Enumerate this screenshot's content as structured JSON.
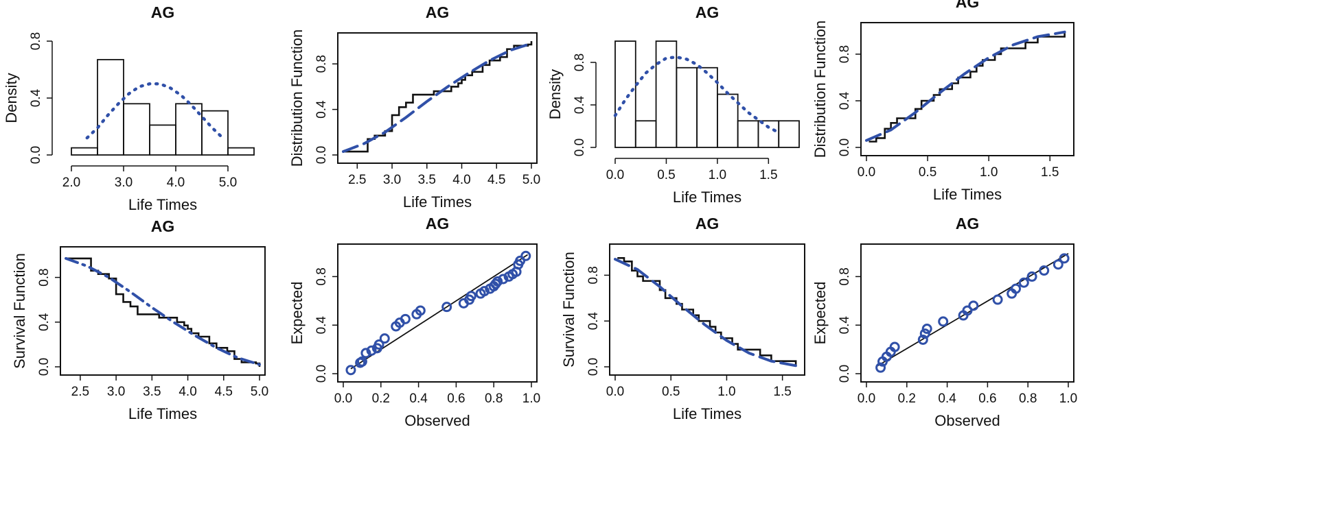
{
  "chart_data": [
    {
      "id": "p1",
      "type": "histogram",
      "title": "AG",
      "xlabel": "Life Times",
      "ylabel": "Density",
      "xlim": [
        2.0,
        5.5
      ],
      "ylim": [
        0,
        0.8
      ],
      "xticks": [
        2.0,
        3.0,
        4.0,
        5.0
      ],
      "yticks": [
        0.0,
        0.4,
        0.8
      ],
      "bins": [
        [
          2.0,
          2.5,
          0.05
        ],
        [
          2.5,
          3.0,
          0.67
        ],
        [
          3.0,
          3.5,
          0.36
        ],
        [
          3.5,
          4.0,
          0.21
        ],
        [
          4.0,
          4.5,
          0.36
        ],
        [
          4.5,
          5.0,
          0.31
        ],
        [
          5.0,
          5.5,
          0.05
        ]
      ],
      "fit": {
        "style": "dotted",
        "color": "#3050a8",
        "x": [
          2.3,
          2.5,
          2.7,
          2.9,
          3.1,
          3.3,
          3.5,
          3.7,
          3.9,
          4.1,
          4.3,
          4.5,
          4.7,
          4.9
        ],
        "y": [
          0.12,
          0.19,
          0.28,
          0.36,
          0.43,
          0.48,
          0.5,
          0.5,
          0.47,
          0.42,
          0.35,
          0.27,
          0.19,
          0.12
        ]
      }
    },
    {
      "id": "p2",
      "type": "step",
      "title": "AG",
      "xlabel": "Life Times",
      "ylabel": "Distribution Function",
      "xlim": [
        2.3,
        5.0
      ],
      "ylim": [
        0,
        1.0
      ],
      "xticks": [
        2.5,
        3.0,
        3.5,
        4.0,
        4.5,
        5.0
      ],
      "yticks": [
        0.0,
        0.4,
        0.8
      ],
      "step": [
        [
          2.3,
          0.03
        ],
        [
          2.65,
          0.03
        ],
        [
          2.65,
          0.14
        ],
        [
          2.75,
          0.17
        ],
        [
          2.9,
          0.21
        ],
        [
          3.0,
          0.35
        ],
        [
          3.1,
          0.42
        ],
        [
          3.2,
          0.46
        ],
        [
          3.3,
          0.53
        ],
        [
          3.55,
          0.53
        ],
        [
          3.6,
          0.56
        ],
        [
          3.8,
          0.56
        ],
        [
          3.85,
          0.6
        ],
        [
          3.95,
          0.63
        ],
        [
          4.0,
          0.66
        ],
        [
          4.05,
          0.7
        ],
        [
          4.15,
          0.73
        ],
        [
          4.3,
          0.79
        ],
        [
          4.4,
          0.83
        ],
        [
          4.55,
          0.86
        ],
        [
          4.65,
          0.93
        ],
        [
          4.75,
          0.96
        ],
        [
          4.95,
          0.97
        ],
        [
          5.0,
          1.0
        ]
      ],
      "fit": {
        "style": "dashed",
        "color": "#3050a8",
        "x": [
          2.3,
          2.6,
          2.9,
          3.2,
          3.5,
          3.8,
          4.1,
          4.4,
          4.7,
          5.0
        ],
        "y": [
          0.03,
          0.1,
          0.2,
          0.33,
          0.47,
          0.6,
          0.72,
          0.83,
          0.92,
          0.98
        ]
      }
    },
    {
      "id": "p3",
      "type": "histogram",
      "title": "AG",
      "xlabel": "Life Times",
      "ylabel": "Density",
      "xlim": [
        0.0,
        1.8
      ],
      "ylim": [
        0,
        1.0
      ],
      "xticks": [
        0.0,
        0.5,
        1.0,
        1.5
      ],
      "yticks": [
        0.0,
        0.4,
        0.8
      ],
      "bins": [
        [
          0.0,
          0.2,
          1.0
        ],
        [
          0.2,
          0.4,
          0.25
        ],
        [
          0.4,
          0.6,
          1.0
        ],
        [
          0.6,
          0.8,
          0.75
        ],
        [
          0.8,
          1.0,
          0.75
        ],
        [
          1.0,
          1.2,
          0.5
        ],
        [
          1.2,
          1.4,
          0.25
        ],
        [
          1.4,
          1.6,
          0.25
        ],
        [
          1.6,
          1.8,
          0.25
        ]
      ],
      "fit": {
        "style": "dotted",
        "color": "#3050a8",
        "x": [
          0.0,
          0.1,
          0.2,
          0.3,
          0.4,
          0.5,
          0.6,
          0.7,
          0.8,
          0.9,
          1.0,
          1.1,
          1.2,
          1.3,
          1.4,
          1.5,
          1.6
        ],
        "y": [
          0.3,
          0.45,
          0.58,
          0.7,
          0.78,
          0.84,
          0.85,
          0.83,
          0.78,
          0.7,
          0.61,
          0.51,
          0.42,
          0.33,
          0.26,
          0.19,
          0.14
        ]
      }
    },
    {
      "id": "p4",
      "type": "step",
      "title": "AG",
      "xlabel": "Life Times",
      "ylabel": "Distribution Function",
      "xlim": [
        0.0,
        1.65
      ],
      "ylim": [
        0,
        1.0
      ],
      "xticks": [
        0.0,
        0.5,
        1.0,
        1.5
      ],
      "yticks": [
        0.0,
        0.4,
        0.8
      ],
      "step": [
        [
          0.02,
          0.05
        ],
        [
          0.08,
          0.08
        ],
        [
          0.15,
          0.16
        ],
        [
          0.2,
          0.21
        ],
        [
          0.25,
          0.25
        ],
        [
          0.4,
          0.33
        ],
        [
          0.45,
          0.4
        ],
        [
          0.55,
          0.45
        ],
        [
          0.6,
          0.5
        ],
        [
          0.7,
          0.55
        ],
        [
          0.75,
          0.6
        ],
        [
          0.85,
          0.65
        ],
        [
          0.9,
          0.7
        ],
        [
          0.95,
          0.75
        ],
        [
          1.05,
          0.8
        ],
        [
          1.1,
          0.85
        ],
        [
          1.3,
          0.9
        ],
        [
          1.4,
          0.95
        ],
        [
          1.62,
          1.0
        ]
      ],
      "fit": {
        "style": "dashed",
        "color": "#3050a8",
        "x": [
          0.0,
          0.2,
          0.4,
          0.6,
          0.8,
          1.0,
          1.2,
          1.4,
          1.62
        ],
        "y": [
          0.06,
          0.15,
          0.3,
          0.47,
          0.63,
          0.77,
          0.88,
          0.95,
          0.99
        ]
      }
    },
    {
      "id": "p5",
      "type": "step",
      "title": "AG",
      "xlabel": "Life Times",
      "ylabel": "Survival Function",
      "xlim": [
        2.3,
        5.0
      ],
      "ylim": [
        0,
        1.0
      ],
      "xticks": [
        2.5,
        3.0,
        3.5,
        4.0,
        4.5,
        5.0
      ],
      "yticks": [
        0.0,
        0.4,
        0.8
      ],
      "step": [
        [
          2.3,
          0.97
        ],
        [
          2.65,
          0.97
        ],
        [
          2.65,
          0.86
        ],
        [
          2.75,
          0.83
        ],
        [
          2.9,
          0.79
        ],
        [
          3.0,
          0.65
        ],
        [
          3.1,
          0.58
        ],
        [
          3.2,
          0.54
        ],
        [
          3.3,
          0.47
        ],
        [
          3.55,
          0.47
        ],
        [
          3.6,
          0.44
        ],
        [
          3.8,
          0.44
        ],
        [
          3.85,
          0.4
        ],
        [
          3.95,
          0.37
        ],
        [
          4.0,
          0.34
        ],
        [
          4.05,
          0.3
        ],
        [
          4.15,
          0.27
        ],
        [
          4.3,
          0.21
        ],
        [
          4.4,
          0.17
        ],
        [
          4.55,
          0.14
        ],
        [
          4.65,
          0.07
        ],
        [
          4.75,
          0.04
        ],
        [
          4.95,
          0.03
        ],
        [
          5.0,
          0.0
        ]
      ],
      "fit": {
        "style": "dashdot",
        "color": "#3050a8",
        "x": [
          2.3,
          2.6,
          2.9,
          3.2,
          3.5,
          3.8,
          4.1,
          4.4,
          4.7,
          5.0
        ],
        "y": [
          0.97,
          0.9,
          0.8,
          0.67,
          0.53,
          0.4,
          0.28,
          0.17,
          0.08,
          0.02
        ]
      }
    },
    {
      "id": "p6",
      "type": "scatter",
      "title": "AG",
      "xlabel": "Observed",
      "ylabel": "Expected",
      "xlim": [
        0.0,
        1.0
      ],
      "ylim": [
        0.0,
        1.0
      ],
      "xticks": [
        0.0,
        0.2,
        0.4,
        0.6,
        0.8,
        1.0
      ],
      "yticks": [
        0.0,
        0.4,
        0.8
      ],
      "points": [
        [
          0.04,
          0.03
        ],
        [
          0.09,
          0.09
        ],
        [
          0.1,
          0.1
        ],
        [
          0.12,
          0.17
        ],
        [
          0.15,
          0.19
        ],
        [
          0.18,
          0.21
        ],
        [
          0.19,
          0.24
        ],
        [
          0.22,
          0.29
        ],
        [
          0.28,
          0.39
        ],
        [
          0.3,
          0.42
        ],
        [
          0.33,
          0.45
        ],
        [
          0.39,
          0.49
        ],
        [
          0.41,
          0.52
        ],
        [
          0.55,
          0.55
        ],
        [
          0.64,
          0.58
        ],
        [
          0.67,
          0.61
        ],
        [
          0.68,
          0.64
        ],
        [
          0.73,
          0.66
        ],
        [
          0.75,
          0.68
        ],
        [
          0.78,
          0.7
        ],
        [
          0.8,
          0.72
        ],
        [
          0.81,
          0.74
        ],
        [
          0.82,
          0.76
        ],
        [
          0.85,
          0.78
        ],
        [
          0.88,
          0.8
        ],
        [
          0.9,
          0.82
        ],
        [
          0.92,
          0.84
        ],
        [
          0.93,
          0.9
        ],
        [
          0.94,
          0.93
        ],
        [
          0.97,
          0.97
        ]
      ],
      "reference_line": [
        [
          0.04,
          0.04
        ],
        [
          0.98,
          0.98
        ]
      ]
    },
    {
      "id": "p7",
      "type": "step",
      "title": "AG",
      "xlabel": "Life Times",
      "ylabel": "Survival Function",
      "xlim": [
        0.0,
        1.65
      ],
      "ylim": [
        0,
        1.0
      ],
      "xticks": [
        0.0,
        0.5,
        1.0,
        1.5
      ],
      "yticks": [
        0.0,
        0.4,
        0.8
      ],
      "step": [
        [
          0.02,
          0.95
        ],
        [
          0.08,
          0.92
        ],
        [
          0.15,
          0.84
        ],
        [
          0.2,
          0.79
        ],
        [
          0.25,
          0.75
        ],
        [
          0.4,
          0.67
        ],
        [
          0.45,
          0.6
        ],
        [
          0.55,
          0.55
        ],
        [
          0.6,
          0.5
        ],
        [
          0.7,
          0.45
        ],
        [
          0.75,
          0.4
        ],
        [
          0.85,
          0.35
        ],
        [
          0.9,
          0.3
        ],
        [
          0.95,
          0.25
        ],
        [
          1.05,
          0.2
        ],
        [
          1.1,
          0.15
        ],
        [
          1.3,
          0.1
        ],
        [
          1.4,
          0.05
        ],
        [
          1.62,
          0.0
        ]
      ],
      "fit": {
        "style": "dashed",
        "color": "#3050a8",
        "x": [
          0.0,
          0.2,
          0.4,
          0.6,
          0.8,
          1.0,
          1.2,
          1.4,
          1.62
        ],
        "y": [
          0.94,
          0.85,
          0.7,
          0.53,
          0.37,
          0.23,
          0.12,
          0.05,
          0.01
        ]
      }
    },
    {
      "id": "p8",
      "type": "scatter",
      "title": "AG",
      "xlabel": "Observed",
      "ylabel": "Expected",
      "xlim": [
        0.0,
        1.0
      ],
      "ylim": [
        0.0,
        1.0
      ],
      "xticks": [
        0.0,
        0.2,
        0.4,
        0.6,
        0.8,
        1.0
      ],
      "yticks": [
        0.0,
        0.4,
        0.8
      ],
      "points": [
        [
          0.07,
          0.05
        ],
        [
          0.08,
          0.1
        ],
        [
          0.1,
          0.14
        ],
        [
          0.12,
          0.18
        ],
        [
          0.14,
          0.22
        ],
        [
          0.28,
          0.28
        ],
        [
          0.29,
          0.33
        ],
        [
          0.3,
          0.37
        ],
        [
          0.38,
          0.43
        ],
        [
          0.48,
          0.48
        ],
        [
          0.5,
          0.52
        ],
        [
          0.53,
          0.56
        ],
        [
          0.65,
          0.61
        ],
        [
          0.72,
          0.66
        ],
        [
          0.74,
          0.7
        ],
        [
          0.78,
          0.75
        ],
        [
          0.82,
          0.8
        ],
        [
          0.88,
          0.85
        ],
        [
          0.95,
          0.9
        ],
        [
          0.98,
          0.95
        ]
      ],
      "reference_line": [
        [
          0.05,
          0.06
        ],
        [
          1.0,
          0.99
        ]
      ]
    }
  ]
}
